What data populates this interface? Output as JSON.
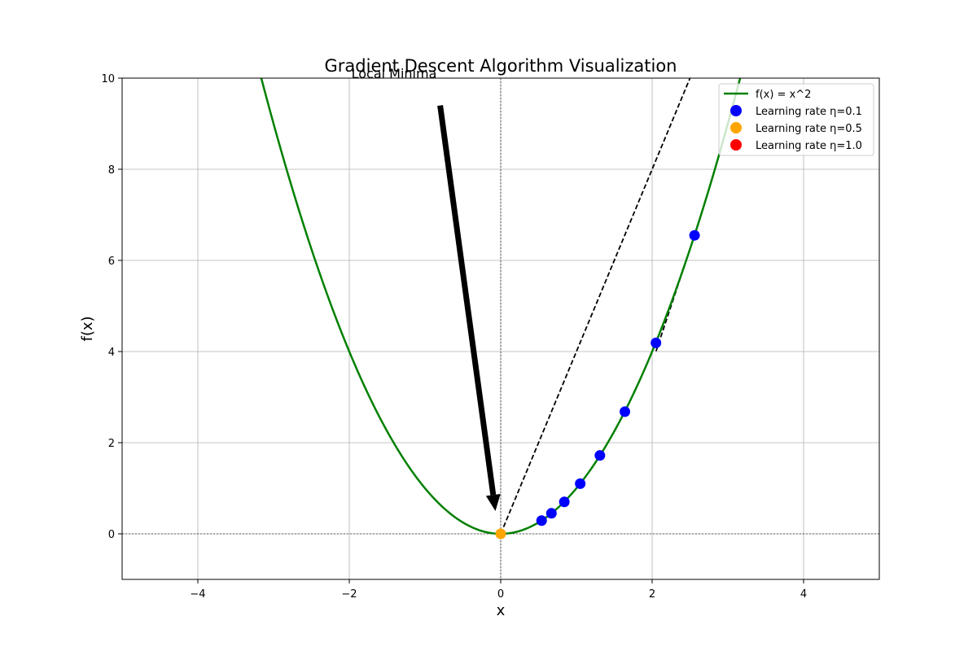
{
  "chart_data": {
    "type": "line",
    "title": "Gradient Descent Algorithm Visualization",
    "xlabel": "x",
    "ylabel": "f(x)",
    "xlim": [
      -5,
      5
    ],
    "ylim": [
      -1,
      10
    ],
    "grid": true,
    "x_ticks": [
      -4,
      -2,
      0,
      2,
      4
    ],
    "x_tick_labels": [
      "−4",
      "−2",
      "0",
      "2",
      "4"
    ],
    "y_ticks": [
      0,
      2,
      4,
      6,
      8,
      10
    ],
    "y_tick_labels": [
      "0",
      "2",
      "4",
      "6",
      "8",
      "10"
    ],
    "curve": {
      "name": "f(x) = x^2",
      "function": "x^2",
      "x_range": [
        -5,
        5
      ],
      "color": "#008000"
    },
    "series": [
      {
        "name": "Learning rate η=0.1",
        "color": "#0000ff",
        "points": [
          {
            "x": 2.56,
            "y": 6.55
          },
          {
            "x": 2.05,
            "y": 4.19
          },
          {
            "x": 1.64,
            "y": 2.68
          },
          {
            "x": 1.31,
            "y": 1.72
          },
          {
            "x": 1.05,
            "y": 1.1
          },
          {
            "x": 0.84,
            "y": 0.7
          },
          {
            "x": 0.67,
            "y": 0.45
          },
          {
            "x": 0.54,
            "y": 0.29
          }
        ]
      },
      {
        "name": "Learning rate η=0.5",
        "color": "#ffa500",
        "points": [
          {
            "x": 0.0,
            "y": 0.0
          }
        ]
      },
      {
        "name": "Learning rate η=1.0",
        "color": "#ff0000",
        "points": []
      }
    ],
    "tangent_lines": [
      {
        "x1": 0.0,
        "y1": 0.0,
        "x2": 2.5,
        "y2": 10.0
      },
      {
        "x1": 2.56,
        "y1": 6.55,
        "x2": 2.05,
        "y2": 4.0
      }
    ],
    "reference_lines": {
      "x": 0,
      "y": 0
    },
    "annotation": {
      "text": "Local Minima",
      "text_at": {
        "x": -2.0,
        "y": 10.0
      },
      "arrow_from": {
        "x": -0.8,
        "y": 9.4
      },
      "arrow_to": {
        "x": -0.07,
        "y": 0.5
      }
    },
    "legend": {
      "position": "top-right",
      "entries": [
        {
          "label": "f(x) = x^2",
          "marker": "line",
          "color": "#008000"
        },
        {
          "label": "Learning rate η=0.1",
          "marker": "circle",
          "color": "#0000ff"
        },
        {
          "label": "Learning rate η=0.5",
          "marker": "circle",
          "color": "#ffa500"
        },
        {
          "label": "Learning rate η=1.0",
          "marker": "circle",
          "color": "#ff0000"
        }
      ]
    }
  }
}
